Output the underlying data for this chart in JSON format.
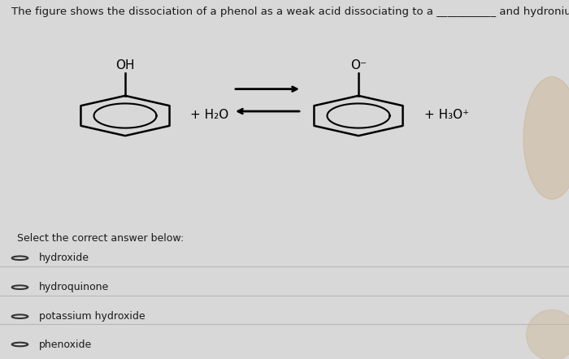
{
  "title_text": "The figure shows the dissociation of a phenol as a weak acid dissociating to a ___________ and hydronium ion in water.",
  "background_color": "#d8d8d8",
  "top_section_bg": "#e8e8e8",
  "bottom_section_bg": "#d0d0d0",
  "text_color": "#1a1a1a",
  "header_fontsize": 9.5,
  "oh_label": "OH",
  "o_label": "O⁻",
  "h2o_label": "+ H₂O",
  "h3o_label": "+ H₃O⁺",
  "select_text": "Select the correct answer below:",
  "options": [
    "hydroxide",
    "hydroquinone",
    "potassium hydroxide",
    "phenoxide"
  ],
  "option_fontsize": 9,
  "select_fontsize": 9
}
